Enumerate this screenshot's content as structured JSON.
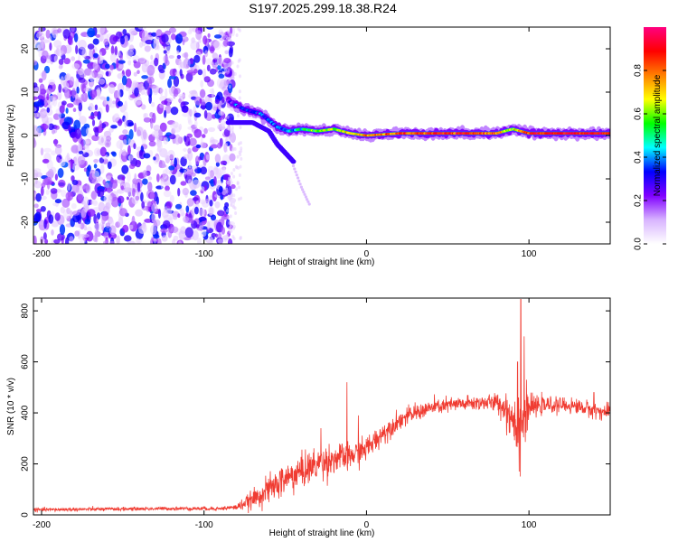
{
  "title": "S197.2025.299.18.38.R24",
  "chart_data": [
    {
      "type": "heatmap",
      "title": "S197.2025.299.18.38.R24",
      "xlabel": "Height of straight line (km)",
      "ylabel": "Frequency (Hz)",
      "xlim": [
        -205,
        150
      ],
      "ylim": [
        -25,
        25
      ],
      "xticks": [
        -200,
        -100,
        0,
        100
      ],
      "yticks": [
        -20,
        -10,
        0,
        10,
        20
      ],
      "colorbar": {
        "label": "Normalized spectral amplitude",
        "range": [
          0.0,
          1.0
        ],
        "ticks": [
          0.0,
          0.2,
          0.4,
          0.6,
          0.8
        ],
        "tick_labels": [
          "0.0",
          "0.2",
          "0.4",
          "0.6",
          "0.8"
        ],
        "colors": [
          "#ffffff",
          "#d8b4ff",
          "#8000ff",
          "#0000ff",
          "#00ffff",
          "#00ff00",
          "#ffff00",
          "#ff8000",
          "#ff0000",
          "#ff0080"
        ]
      },
      "noise_region_km": [
        -205,
        -82
      ],
      "main_line": {
        "x": [
          -85,
          -75,
          -65,
          -55,
          -48,
          -40,
          -30,
          -20,
          -10,
          0,
          20,
          40,
          60,
          80,
          90,
          100,
          120,
          150
        ],
        "freq": [
          8,
          6,
          5,
          2,
          1,
          1.5,
          1,
          1.5,
          0.5,
          0,
          0.5,
          0.5,
          0.5,
          0.5,
          1.5,
          0.5,
          0.5,
          0.5
        ],
        "amplitude": [
          0.25,
          0.3,
          0.35,
          0.35,
          0.4,
          0.5,
          0.6,
          0.6,
          0.7,
          0.75,
          0.8,
          0.85,
          0.85,
          0.8,
          0.6,
          0.85,
          0.9,
          0.9
        ]
      },
      "lower_branch": {
        "x": [
          -85,
          -70,
          -60,
          -55,
          -50,
          -45
        ],
        "freq": [
          3,
          3,
          1,
          -2,
          -4,
          -6
        ]
      },
      "faint_trail": {
        "x": [
          -45,
          -40,
          -35
        ],
        "freq": [
          -7,
          -12,
          -16
        ]
      }
    },
    {
      "type": "line",
      "xlabel": "Height of straight line (km)",
      "ylabel": "SNR (10 * v/v)",
      "xlim": [
        -205,
        150
      ],
      "ylim": [
        0,
        850
      ],
      "xticks": [
        -200,
        -100,
        0,
        100
      ],
      "yticks": [
        0,
        200,
        400,
        600,
        800
      ],
      "color": "#f03c32",
      "envelope_x": [
        -205,
        -120,
        -90,
        -80,
        -70,
        -60,
        -50,
        -40,
        -30,
        -20,
        -10,
        0,
        10,
        20,
        30,
        40,
        50,
        60,
        70,
        80,
        85,
        90,
        95,
        100,
        110,
        120,
        130,
        140,
        150
      ],
      "envelope_mean": [
        20,
        25,
        25,
        30,
        60,
        100,
        140,
        170,
        200,
        220,
        230,
        260,
        320,
        370,
        400,
        420,
        430,
        435,
        440,
        440,
        420,
        380,
        350,
        420,
        430,
        430,
        425,
        410,
        400
      ],
      "envelope_noise": [
        6,
        6,
        6,
        10,
        30,
        45,
        55,
        55,
        55,
        50,
        45,
        40,
        35,
        30,
        28,
        26,
        25,
        25,
        25,
        30,
        50,
        90,
        150,
        40,
        25,
        25,
        25,
        25,
        25
      ],
      "spikes": [
        {
          "x": -12,
          "y": 520
        },
        {
          "x": -28,
          "y": 340
        },
        {
          "x": -5,
          "y": 390
        },
        {
          "x": 93,
          "y": 600
        },
        {
          "x": 95,
          "y": 845
        },
        {
          "x": 97,
          "y": 700
        },
        {
          "x": 94,
          "y": 170
        },
        {
          "x": 140,
          "y": 480
        }
      ]
    }
  ]
}
